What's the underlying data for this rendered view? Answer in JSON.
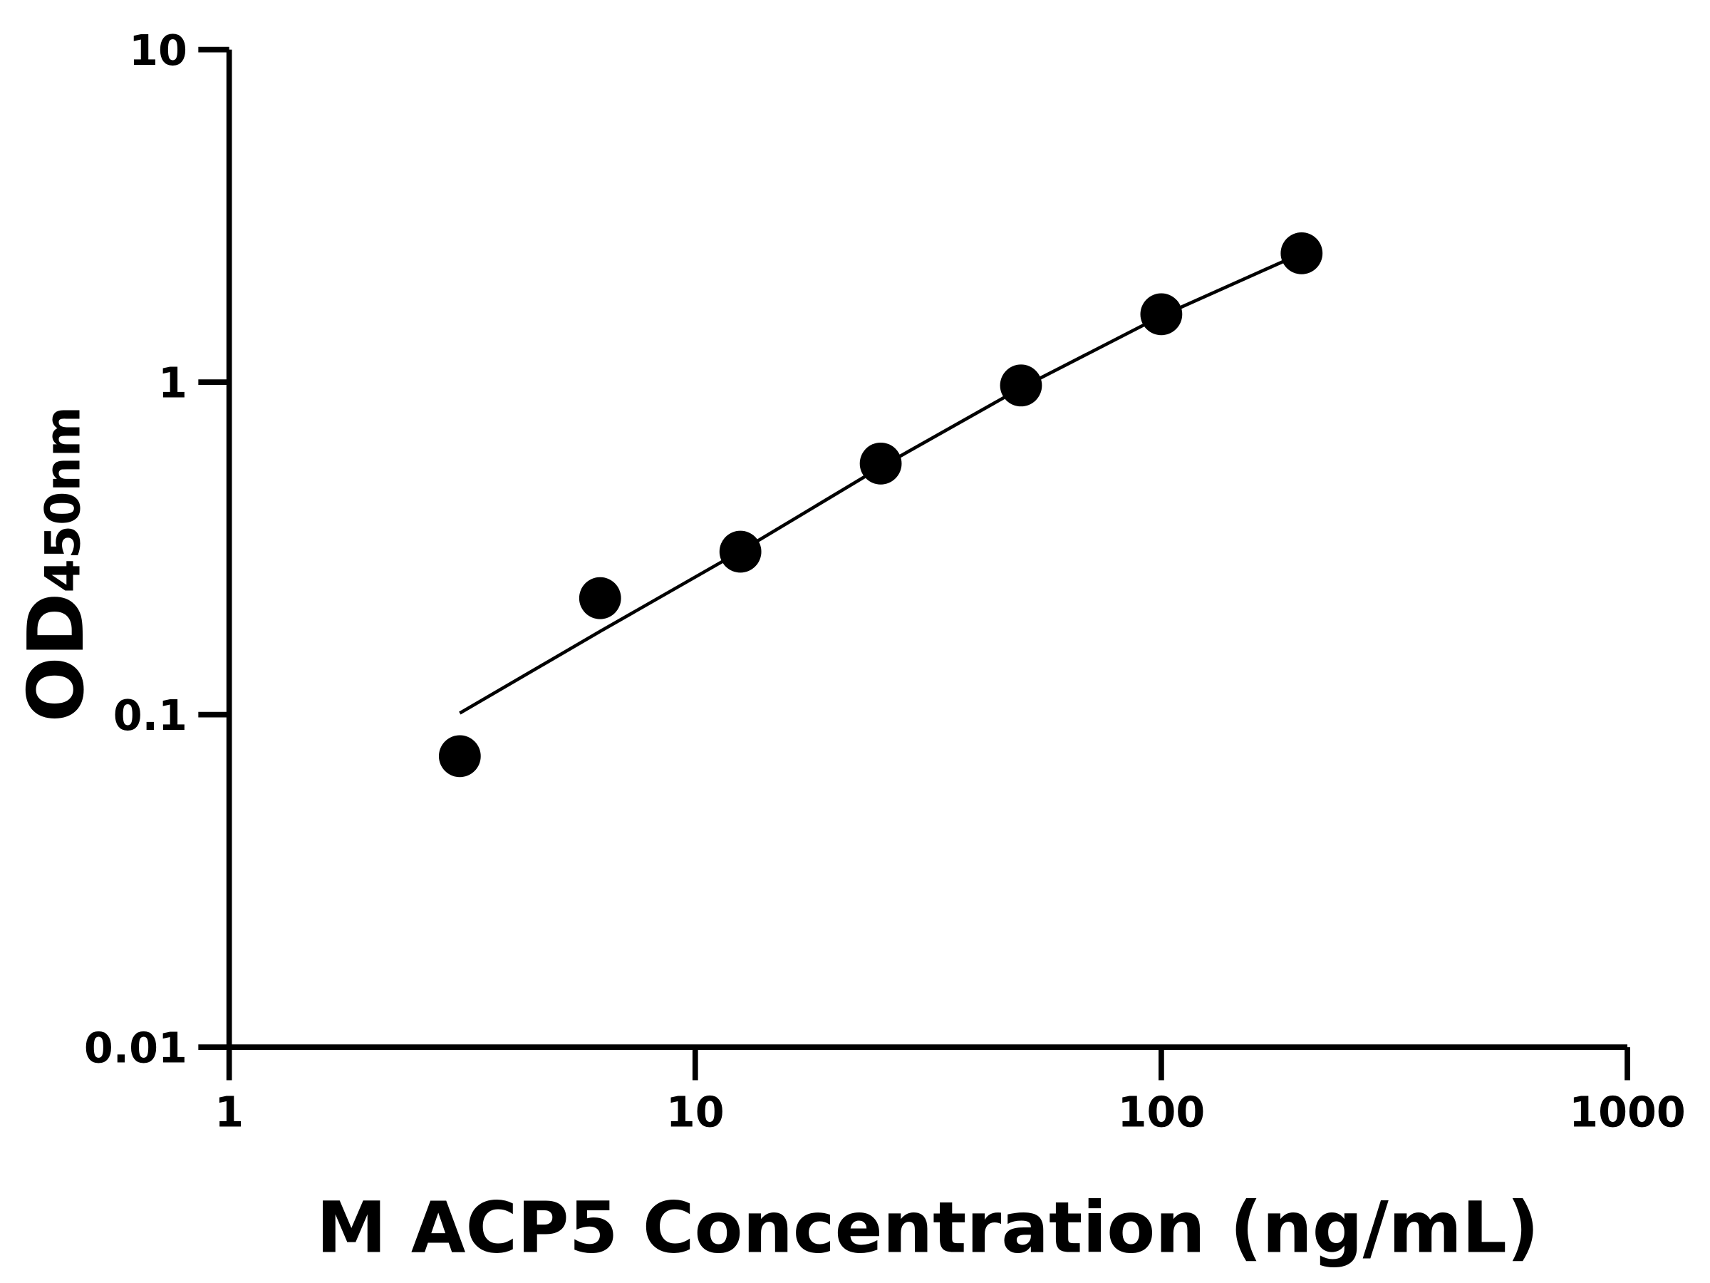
{
  "chart_data": {
    "type": "scatter",
    "title": "",
    "xlabel": "M ACP5 Concentration (ng/mL)",
    "ylabel_main": "OD",
    "ylabel_sub": "450nm",
    "x_scale": "log",
    "y_scale": "log",
    "xlim": [
      1,
      1000
    ],
    "ylim": [
      0.01,
      10
    ],
    "x_ticks": [
      1,
      10,
      100,
      1000
    ],
    "x_tick_labels": [
      "1",
      "10",
      "100",
      "1000"
    ],
    "y_ticks": [
      0.01,
      0.1,
      1,
      10
    ],
    "y_tick_labels": [
      "0.01",
      "0.1",
      "1",
      "10"
    ],
    "grid": false,
    "points": {
      "x": [
        3.125,
        6.25,
        12.5,
        25,
        50,
        100,
        200
      ],
      "y": [
        0.075,
        0.224,
        0.309,
        0.569,
        0.977,
        1.6,
        2.44
      ]
    },
    "fit_curve": {
      "x": [
        3.125,
        6.25,
        12.5,
        25,
        50,
        100,
        200
      ],
      "y": [
        0.101,
        0.178,
        0.31,
        0.555,
        0.96,
        1.58,
        2.44
      ]
    },
    "color": "#000000"
  }
}
